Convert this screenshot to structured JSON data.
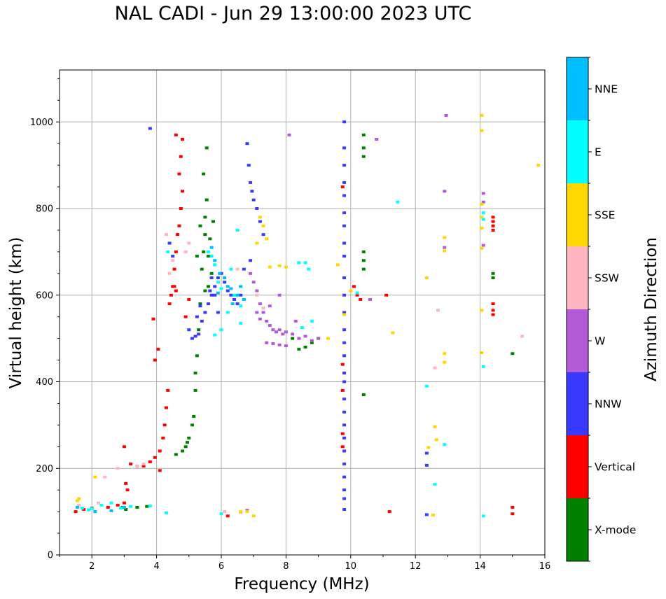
{
  "chart_data": {
    "type": "scatter",
    "title": "NAL CADI - Jun 29 13:00:00 2023 UTC",
    "xlabel": "Frequency (MHz)",
    "ylabel": "Virtual height (km)",
    "xlim": [
      1,
      16
    ],
    "ylim": [
      0,
      1120
    ],
    "xticks": [
      2,
      4,
      6,
      8,
      10,
      12,
      14,
      16
    ],
    "yticks": [
      0,
      200,
      400,
      600,
      800,
      1000
    ],
    "grid": true,
    "colorbar": {
      "label": "Azimuth Direction",
      "categories": [
        "X-mode",
        "Vertical",
        "NNW",
        "W",
        "SSW",
        "SSE",
        "E",
        "NNE"
      ],
      "colors": [
        "#008000",
        "#ff0000",
        "#3a3aff",
        "#b55ad6",
        "#ffb6c1",
        "#ffd700",
        "#00ffff",
        "#00bfff"
      ]
    },
    "series": [
      {
        "name": "X-mode",
        "points": [
          [
            2.95,
            110
          ],
          [
            3.05,
            105
          ],
          [
            3.4,
            110
          ],
          [
            3.7,
            112
          ],
          [
            4.6,
            232
          ],
          [
            4.8,
            240
          ],
          [
            4.9,
            250
          ],
          [
            5.0,
            270
          ],
          [
            5.1,
            300
          ],
          [
            5.15,
            320
          ],
          [
            5.2,
            380
          ],
          [
            5.2,
            420
          ],
          [
            5.25,
            460
          ],
          [
            5.3,
            520
          ],
          [
            5.35,
            580
          ],
          [
            5.4,
            660
          ],
          [
            5.45,
            700
          ],
          [
            5.5,
            740
          ],
          [
            5.5,
            780
          ],
          [
            5.55,
            820
          ],
          [
            5.45,
            880
          ],
          [
            5.55,
            940
          ],
          [
            5.6,
            690
          ],
          [
            5.65,
            730
          ],
          [
            5.7,
            650
          ],
          [
            5.75,
            770
          ],
          [
            5.6,
            620
          ],
          [
            8.6,
            480
          ],
          [
            8.8,
            490
          ],
          [
            9.0,
            500
          ],
          [
            8.4,
            475
          ],
          [
            8.2,
            500
          ],
          [
            10.4,
            970
          ],
          [
            10.4,
            940
          ],
          [
            10.4,
            920
          ],
          [
            10.4,
            700
          ],
          [
            10.4,
            680
          ],
          [
            10.4,
            660
          ],
          [
            10.4,
            370
          ],
          [
            14.4,
            650
          ],
          [
            14.4,
            640
          ],
          [
            15.0,
            465
          ],
          [
            5.35,
            760
          ],
          [
            5.25,
            690
          ],
          [
            5.5,
            610
          ],
          [
            4.95,
            260
          ]
        ]
      },
      {
        "name": "Vertical",
        "points": [
          [
            1.5,
            100
          ],
          [
            1.75,
            105
          ],
          [
            2.0,
            108
          ],
          [
            2.5,
            110
          ],
          [
            2.8,
            115
          ],
          [
            3.0,
            120
          ],
          [
            3.1,
            150
          ],
          [
            3.05,
            165
          ],
          [
            3.0,
            250
          ],
          [
            3.2,
            210
          ],
          [
            3.4,
            205
          ],
          [
            3.6,
            205
          ],
          [
            3.8,
            215
          ],
          [
            3.95,
            225
          ],
          [
            4.1,
            240
          ],
          [
            4.2,
            270
          ],
          [
            4.25,
            300
          ],
          [
            4.3,
            340
          ],
          [
            4.35,
            380
          ],
          [
            4.1,
            195
          ],
          [
            3.95,
            450
          ],
          [
            4.05,
            475
          ],
          [
            3.9,
            545
          ],
          [
            4.4,
            580
          ],
          [
            4.45,
            600
          ],
          [
            4.5,
            620
          ],
          [
            4.55,
            660
          ],
          [
            4.6,
            700
          ],
          [
            4.65,
            740
          ],
          [
            4.7,
            760
          ],
          [
            4.75,
            800
          ],
          [
            4.8,
            840
          ],
          [
            4.7,
            880
          ],
          [
            4.75,
            920
          ],
          [
            4.8,
            960
          ],
          [
            4.6,
            970
          ],
          [
            4.55,
            620
          ],
          [
            4.6,
            610
          ],
          [
            5.0,
            590
          ],
          [
            4.9,
            550
          ],
          [
            6.2,
            90
          ],
          [
            10.1,
            620
          ],
          [
            10.2,
            600
          ],
          [
            10.3,
            590
          ],
          [
            11.1,
            600
          ],
          [
            14.4,
            780
          ],
          [
            14.4,
            770
          ],
          [
            14.4,
            760
          ],
          [
            14.4,
            750
          ],
          [
            14.4,
            580
          ],
          [
            14.4,
            565
          ],
          [
            14.4,
            555
          ],
          [
            15.0,
            110
          ],
          [
            15.0,
            95
          ],
          [
            9.75,
            850
          ],
          [
            9.75,
            440
          ],
          [
            9.75,
            380
          ],
          [
            9.75,
            280
          ],
          [
            9.75,
            250
          ],
          [
            11.2,
            100
          ]
        ]
      },
      {
        "name": "NNW",
        "points": [
          [
            4.4,
            720
          ],
          [
            4.5,
            690
          ],
          [
            5.0,
            520
          ],
          [
            5.1,
            500
          ],
          [
            5.2,
            505
          ],
          [
            5.3,
            510
          ],
          [
            5.4,
            540
          ],
          [
            5.5,
            560
          ],
          [
            5.6,
            580
          ],
          [
            5.7,
            600
          ],
          [
            5.8,
            620
          ],
          [
            5.9,
            640
          ],
          [
            6.0,
            650
          ],
          [
            6.1,
            630
          ],
          [
            6.2,
            610
          ],
          [
            6.3,
            600
          ],
          [
            6.4,
            590
          ],
          [
            6.5,
            580
          ],
          [
            6.6,
            600
          ],
          [
            5.9,
            560
          ],
          [
            5.8,
            600
          ],
          [
            5.7,
            640
          ],
          [
            5.65,
            610
          ],
          [
            6.8,
            950
          ],
          [
            6.85,
            900
          ],
          [
            6.9,
            860
          ],
          [
            6.95,
            840
          ],
          [
            7.0,
            820
          ],
          [
            7.1,
            800
          ],
          [
            7.2,
            770
          ],
          [
            7.3,
            740
          ],
          [
            6.7,
            660
          ],
          [
            6.9,
            680
          ],
          [
            9.8,
            1000
          ],
          [
            9.8,
            940
          ],
          [
            9.8,
            900
          ],
          [
            9.8,
            860
          ],
          [
            9.8,
            830
          ],
          [
            9.8,
            790
          ],
          [
            9.8,
            760
          ],
          [
            9.8,
            720
          ],
          [
            9.8,
            690
          ],
          [
            9.8,
            640
          ],
          [
            9.8,
            600
          ],
          [
            9.8,
            560
          ],
          [
            9.8,
            520
          ],
          [
            9.8,
            490
          ],
          [
            9.8,
            460
          ],
          [
            9.8,
            420
          ],
          [
            9.8,
            400
          ],
          [
            9.8,
            360
          ],
          [
            9.8,
            330
          ],
          [
            9.8,
            300
          ],
          [
            9.8,
            270
          ],
          [
            9.8,
            240
          ],
          [
            9.8,
            210
          ],
          [
            9.8,
            180
          ],
          [
            9.8,
            150
          ],
          [
            9.8,
            130
          ],
          [
            9.8,
            105
          ],
          [
            12.35,
            235
          ],
          [
            12.35,
            207
          ],
          [
            12.35,
            93
          ],
          [
            3.8,
            985
          ],
          [
            5.25,
            550
          ],
          [
            5.35,
            575
          ]
        ]
      },
      {
        "name": "W",
        "points": [
          [
            6.8,
            103
          ],
          [
            7.1,
            560
          ],
          [
            7.2,
            545
          ],
          [
            7.3,
            560
          ],
          [
            7.4,
            540
          ],
          [
            7.5,
            530
          ],
          [
            7.6,
            520
          ],
          [
            7.7,
            515
          ],
          [
            7.8,
            520
          ],
          [
            7.9,
            510
          ],
          [
            8.0,
            515
          ],
          [
            8.2,
            510
          ],
          [
            8.4,
            500
          ],
          [
            8.6,
            505
          ],
          [
            8.8,
            495
          ],
          [
            9.0,
            500
          ],
          [
            7.4,
            490
          ],
          [
            7.6,
            488
          ],
          [
            7.8,
            485
          ],
          [
            8.0,
            483
          ],
          [
            7.1,
            610
          ],
          [
            7.0,
            630
          ],
          [
            6.9,
            650
          ],
          [
            7.2,
            580
          ],
          [
            7.8,
            600
          ],
          [
            8.1,
            970
          ],
          [
            10.8,
            960
          ],
          [
            10.6,
            590
          ],
          [
            12.9,
            710
          ],
          [
            12.9,
            840
          ],
          [
            14.1,
            835
          ],
          [
            14.1,
            815
          ],
          [
            14.1,
            715
          ],
          [
            12.95,
            1015
          ],
          [
            7.5,
            575
          ],
          [
            8.3,
            540
          ]
        ]
      },
      {
        "name": "SSW",
        "points": [
          [
            1.6,
            115
          ],
          [
            2.2,
            120
          ],
          [
            2.4,
            180
          ],
          [
            2.8,
            200
          ],
          [
            3.4,
            205
          ],
          [
            3.6,
            210
          ],
          [
            4.4,
            650
          ],
          [
            4.5,
            680
          ],
          [
            4.9,
            700
          ],
          [
            5.0,
            720
          ],
          [
            6.5,
            660
          ],
          [
            7.1,
            600
          ],
          [
            7.3,
            570
          ],
          [
            12.7,
            565
          ],
          [
            12.6,
            432
          ],
          [
            15.3,
            505
          ],
          [
            6.1,
            100
          ],
          [
            6.6,
            98
          ],
          [
            4.3,
            740
          ]
        ]
      },
      {
        "name": "SSE",
        "points": [
          [
            1.55,
            125
          ],
          [
            1.6,
            130
          ],
          [
            2.1,
            180
          ],
          [
            6.6,
            100
          ],
          [
            6.8,
            100
          ],
          [
            7.0,
            90
          ],
          [
            7.2,
            780
          ],
          [
            7.3,
            760
          ],
          [
            7.4,
            730
          ],
          [
            7.8,
            668
          ],
          [
            8.0,
            665
          ],
          [
            9.3,
            500
          ],
          [
            9.6,
            670
          ],
          [
            9.8,
            555
          ],
          [
            10.0,
            610
          ],
          [
            11.3,
            513
          ],
          [
            12.35,
            640
          ],
          [
            12.4,
            248
          ],
          [
            12.55,
            92
          ],
          [
            12.6,
            296
          ],
          [
            12.65,
            266
          ],
          [
            12.9,
            733
          ],
          [
            12.9,
            702
          ],
          [
            12.9,
            465
          ],
          [
            12.9,
            445
          ],
          [
            14.05,
            1015
          ],
          [
            14.05,
            980
          ],
          [
            14.05,
            810
          ],
          [
            14.05,
            780
          ],
          [
            14.05,
            755
          ],
          [
            14.05,
            708
          ],
          [
            14.05,
            565
          ],
          [
            14.05,
            467
          ],
          [
            15.8,
            900
          ],
          [
            7.1,
            720
          ],
          [
            7.5,
            665
          ]
        ]
      },
      {
        "name": "E",
        "points": [
          [
            1.7,
            108
          ],
          [
            1.9,
            104
          ],
          [
            2.0,
            107
          ],
          [
            2.3,
            115
          ],
          [
            2.6,
            120
          ],
          [
            2.9,
            108
          ],
          [
            3.2,
            112
          ],
          [
            3.8,
            113
          ],
          [
            4.3,
            97
          ],
          [
            4.35,
            700
          ],
          [
            5.6,
            700
          ],
          [
            5.7,
            690
          ],
          [
            5.8,
            670
          ],
          [
            5.9,
            630
          ],
          [
            6.0,
            615
          ],
          [
            6.3,
            660
          ],
          [
            6.4,
            600
          ],
          [
            6.6,
            575
          ],
          [
            6.6,
            535
          ],
          [
            6.0,
            520
          ],
          [
            5.8,
            508
          ],
          [
            6.5,
            750
          ],
          [
            8.4,
            675
          ],
          [
            8.6,
            675
          ],
          [
            8.7,
            660
          ],
          [
            8.5,
            525
          ],
          [
            8.8,
            540
          ],
          [
            10.2,
            605
          ],
          [
            11.45,
            815
          ],
          [
            12.35,
            390
          ],
          [
            12.6,
            163
          ],
          [
            12.9,
            255
          ],
          [
            14.1,
            790
          ],
          [
            14.1,
            775
          ],
          [
            14.1,
            435
          ],
          [
            14.1,
            90
          ],
          [
            6.2,
            560
          ],
          [
            6.0,
            95
          ]
        ]
      },
      {
        "name": "NNE",
        "points": [
          [
            1.55,
            110
          ],
          [
            2.1,
            100
          ],
          [
            2.6,
            102
          ],
          [
            3.0,
            110
          ],
          [
            5.7,
            710
          ],
          [
            5.8,
            680
          ],
          [
            5.95,
            650
          ],
          [
            6.1,
            640
          ],
          [
            6.2,
            620
          ],
          [
            6.3,
            615
          ],
          [
            6.35,
            580
          ],
          [
            6.5,
            600
          ],
          [
            6.6,
            620
          ],
          [
            6.7,
            590
          ],
          [
            5.9,
            605
          ]
        ]
      }
    ]
  }
}
